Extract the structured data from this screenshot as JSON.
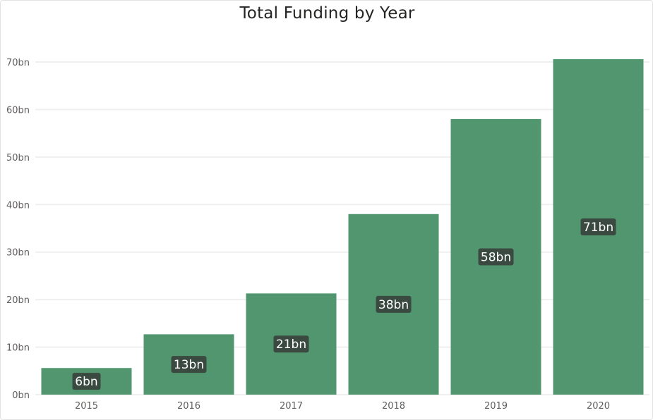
{
  "chart_data": {
    "type": "bar",
    "title": "Total Funding by Year",
    "xlabel": "",
    "ylabel": "",
    "categories": [
      "2015",
      "2016",
      "2017",
      "2018",
      "2019",
      "2020"
    ],
    "values": [
      5.6,
      12.7,
      21.3,
      38.0,
      58.0,
      70.6
    ],
    "data_labels": [
      "6bn",
      "13bn",
      "21bn",
      "38bn",
      "58bn",
      "71bn"
    ],
    "ylim": [
      0,
      70
    ],
    "y_ticks": [
      0,
      10,
      20,
      30,
      40,
      50,
      60,
      70
    ],
    "y_tick_labels": [
      "0bn",
      "10bn",
      "20bn",
      "30bn",
      "40bn",
      "50bn",
      "60bn",
      "70bn"
    ],
    "grid": true,
    "legend": "none",
    "colors": {
      "bar": "#52966f",
      "gridline": "#efefef",
      "label_bg": "#3a4a41",
      "label_text": "#ffffff"
    }
  }
}
